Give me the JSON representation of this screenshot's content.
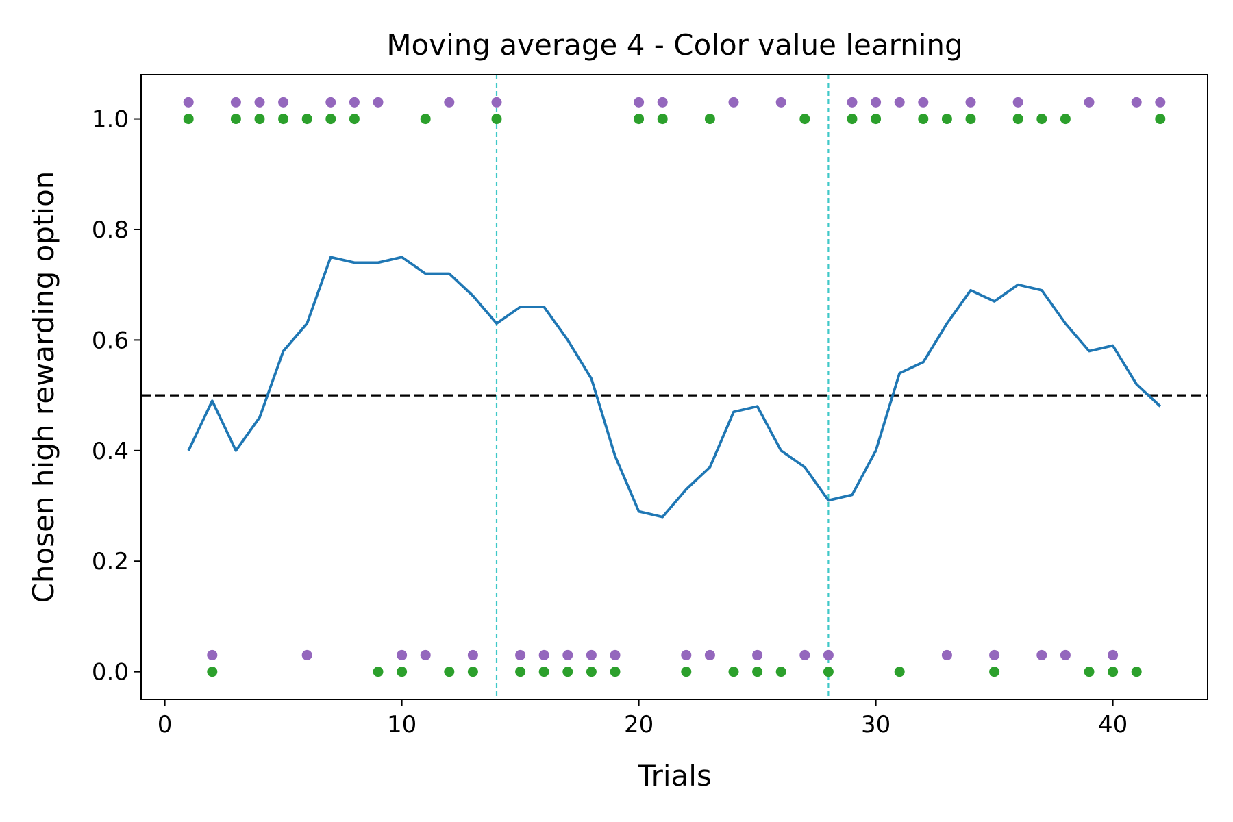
{
  "chart_data": {
    "type": "line",
    "title": "Moving average 4 - Color value learning",
    "xlabel": "Trials",
    "ylabel": "Chosen high rewarding option",
    "xlim": [
      -1,
      44
    ],
    "ylim": [
      -0.05,
      1.08
    ],
    "xticks": [
      0,
      10,
      20,
      30,
      40
    ],
    "xtick_labels": [
      "0",
      "10",
      "20",
      "30",
      "40"
    ],
    "yticks": [
      0.0,
      0.2,
      0.4,
      0.6,
      0.8,
      1.0
    ],
    "ytick_labels": [
      "0.0",
      "0.2",
      "0.4",
      "0.6",
      "0.8",
      "1.0"
    ],
    "grid": false,
    "colors": {
      "line": "#1f77b4",
      "green_dots": "#2ca02c",
      "purple_dots": "#9467bd",
      "reference_line": "#000000",
      "vertical_lines": "#40c8c8"
    },
    "line_series": {
      "x": [
        1,
        2,
        3,
        4,
        5,
        6,
        7,
        8,
        9,
        10,
        11,
        12,
        13,
        14,
        15,
        16,
        17,
        18,
        19,
        20,
        21,
        22,
        23,
        24,
        25,
        26,
        27,
        28,
        29,
        30,
        31,
        32,
        33,
        34,
        35,
        36,
        37,
        38,
        39,
        40,
        41,
        42
      ],
      "y": [
        0.4,
        0.49,
        0.4,
        0.46,
        0.58,
        0.63,
        0.75,
        0.74,
        0.74,
        0.75,
        0.72,
        0.72,
        0.68,
        0.63,
        0.66,
        0.66,
        0.6,
        0.53,
        0.39,
        0.29,
        0.28,
        0.33,
        0.37,
        0.47,
        0.48,
        0.4,
        0.37,
        0.31,
        0.32,
        0.4,
        0.54,
        0.56,
        0.63,
        0.69,
        0.67,
        0.7,
        0.69,
        0.63,
        0.58,
        0.59,
        0.52,
        0.48
      ]
    },
    "green_series": {
      "x": [
        1,
        2,
        3,
        4,
        5,
        6,
        7,
        8,
        9,
        10,
        11,
        12,
        13,
        14,
        15,
        16,
        17,
        18,
        19,
        20,
        21,
        22,
        23,
        24,
        25,
        26,
        27,
        28,
        29,
        30,
        31,
        32,
        33,
        34,
        35,
        36,
        37,
        38,
        39,
        40,
        41,
        42
      ],
      "y": [
        1,
        0,
        1,
        1,
        1,
        1,
        1,
        1,
        0,
        0,
        1,
        0,
        0,
        1,
        0,
        0,
        0,
        0,
        0,
        1,
        1,
        0,
        1,
        0,
        0,
        0,
        1,
        0,
        1,
        1,
        0,
        1,
        1,
        1,
        0,
        1,
        1,
        1,
        0,
        0,
        0,
        1
      ]
    },
    "purple_series": {
      "x": [
        1,
        2,
        3,
        4,
        5,
        6,
        7,
        8,
        9,
        10,
        11,
        12,
        13,
        14,
        15,
        16,
        17,
        18,
        19,
        20,
        21,
        22,
        23,
        24,
        25,
        26,
        27,
        28,
        29,
        30,
        31,
        32,
        33,
        34,
        35,
        36,
        37,
        38,
        39,
        40,
        41,
        42
      ],
      "y": [
        1.03,
        0.03,
        1.03,
        1.03,
        1.03,
        0.03,
        1.03,
        1.03,
        1.03,
        0.03,
        0.03,
        1.03,
        0.03,
        1.03,
        0.03,
        0.03,
        0.03,
        0.03,
        0.03,
        1.03,
        1.03,
        0.03,
        0.03,
        1.03,
        0.03,
        1.03,
        0.03,
        0.03,
        1.03,
        1.03,
        1.03,
        1.03,
        0.03,
        1.03,
        0.03,
        1.03,
        0.03,
        0.03,
        1.03,
        0.03,
        1.03,
        1.03
      ]
    },
    "horizontal_reference": 0.5,
    "vertical_markers": [
      14,
      28
    ]
  }
}
